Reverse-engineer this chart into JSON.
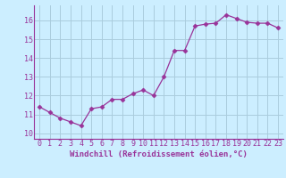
{
  "x": [
    0,
    1,
    2,
    3,
    4,
    5,
    6,
    7,
    8,
    9,
    10,
    11,
    12,
    13,
    14,
    15,
    16,
    17,
    18,
    19,
    20,
    21,
    22,
    23
  ],
  "y": [
    11.4,
    11.1,
    10.8,
    10.6,
    10.4,
    11.3,
    11.4,
    11.8,
    11.8,
    12.1,
    12.3,
    12.0,
    13.0,
    14.4,
    14.4,
    15.7,
    15.8,
    15.85,
    16.3,
    16.1,
    15.9,
    15.85,
    15.85,
    15.6
  ],
  "line_color": "#993399",
  "marker": "D",
  "marker_size": 2.5,
  "bg_color": "#cceeff",
  "grid_color": "#aaccdd",
  "xlabel": "Windchill (Refroidissement éolien,°C)",
  "xlabel_fontsize": 6.5,
  "xtick_labels": [
    "0",
    "1",
    "2",
    "3",
    "4",
    "5",
    "6",
    "7",
    "8",
    "9",
    "10",
    "11",
    "12",
    "13",
    "14",
    "15",
    "16",
    "17",
    "18",
    "19",
    "20",
    "21",
    "22",
    "23"
  ],
  "ytick_labels": [
    "10",
    "11",
    "12",
    "13",
    "14",
    "15",
    "16"
  ],
  "ytick_vals": [
    10,
    11,
    12,
    13,
    14,
    15,
    16
  ],
  "ylim": [
    9.7,
    16.8
  ],
  "xlim": [
    -0.5,
    23.5
  ],
  "tick_fontsize": 6.0,
  "spine_color": "#993399"
}
